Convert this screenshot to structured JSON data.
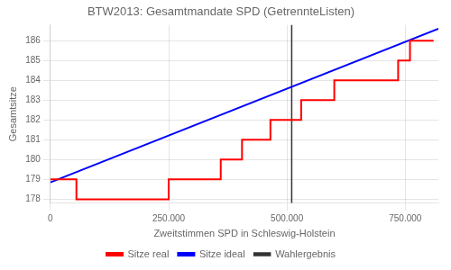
{
  "chart_data": {
    "type": "line",
    "title": "BTW2013: Gesamtmandate SPD (GetrennteListen)",
    "xlabel": "Zweitstimmen SPD in Schleswig-Holstein",
    "ylabel": "Gesamtsitze",
    "xlim": [
      0,
      820000
    ],
    "ylim": [
      177.8,
      186.8
    ],
    "xticks": [
      0,
      {
        "value": 250000,
        "label": "250.000"
      },
      {
        "value": 500000,
        "label": "500.000"
      },
      {
        "value": 750000,
        "label": "750.000"
      }
    ],
    "yticks": [
      178,
      179,
      180,
      181,
      182,
      183,
      184,
      185,
      186
    ],
    "grid": true,
    "legend": "bottom",
    "series": [
      {
        "name": "Sitze real",
        "color": "red",
        "line_style": "step",
        "x": [
          0,
          50000,
          55000,
          110000,
          115000,
          200000,
          205000,
          245000,
          250000,
          295000,
          355000,
          360000,
          400000,
          405000,
          450000,
          460000,
          465000,
          500000,
          510000,
          530000,
          545000,
          550000,
          595000,
          600000,
          640000,
          655000,
          690000,
          700000,
          735000,
          755000,
          760000,
          800000,
          810000
        ],
        "values": [
          179,
          179,
          178,
          178,
          178,
          178,
          178,
          178,
          179,
          179,
          179,
          180,
          180,
          181,
          181,
          181,
          182,
          182,
          182,
          183,
          183,
          183,
          183,
          184,
          184,
          184,
          184,
          184,
          185,
          185,
          186,
          186,
          186
        ]
      },
      {
        "name": "Sitze ideal",
        "color": "blue",
        "line_style": "solid",
        "x": [
          0,
          820000
        ],
        "values": [
          178.85,
          186.6
        ]
      },
      {
        "name": "Wahlergebnis",
        "color": "#333333",
        "type": "vline",
        "x": [
          510000
        ]
      }
    ]
  }
}
